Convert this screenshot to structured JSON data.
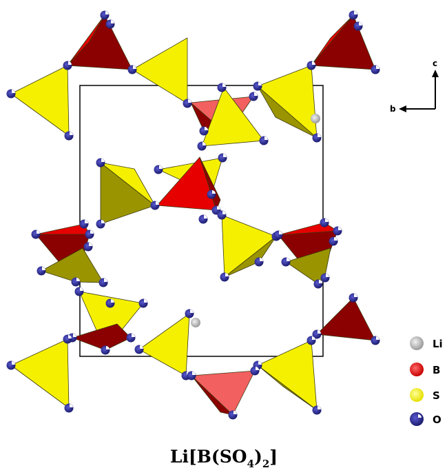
{
  "axes": {
    "c_label": "c",
    "b_label": "b"
  },
  "legend": [
    {
      "label": "Li",
      "color": "#c8c8c8",
      "icon": "li-atom-icon"
    },
    {
      "label": "B",
      "color": "#ff1a1a",
      "icon": "b-atom-icon"
    },
    {
      "label": "S",
      "color": "#ffff00",
      "icon": "s-atom-icon"
    },
    {
      "label": "O",
      "color": "#2b2b8f",
      "icon": "o-atom-icon"
    }
  ],
  "formula": {
    "prefix": "Li[B(SO",
    "sub1": "4",
    "mid": ")",
    "sub2": "2",
    "suffix": "]"
  },
  "colors": {
    "sulfate": "#f5f000",
    "sulfate_shade": "#9a9400",
    "borate_dark": "#8b0000",
    "borate_red": "#e60000",
    "borate_pink": "#f26060",
    "oxygen": "#2b2b8f",
    "lithium": "#c8c8c8",
    "cell": "#000000"
  }
}
